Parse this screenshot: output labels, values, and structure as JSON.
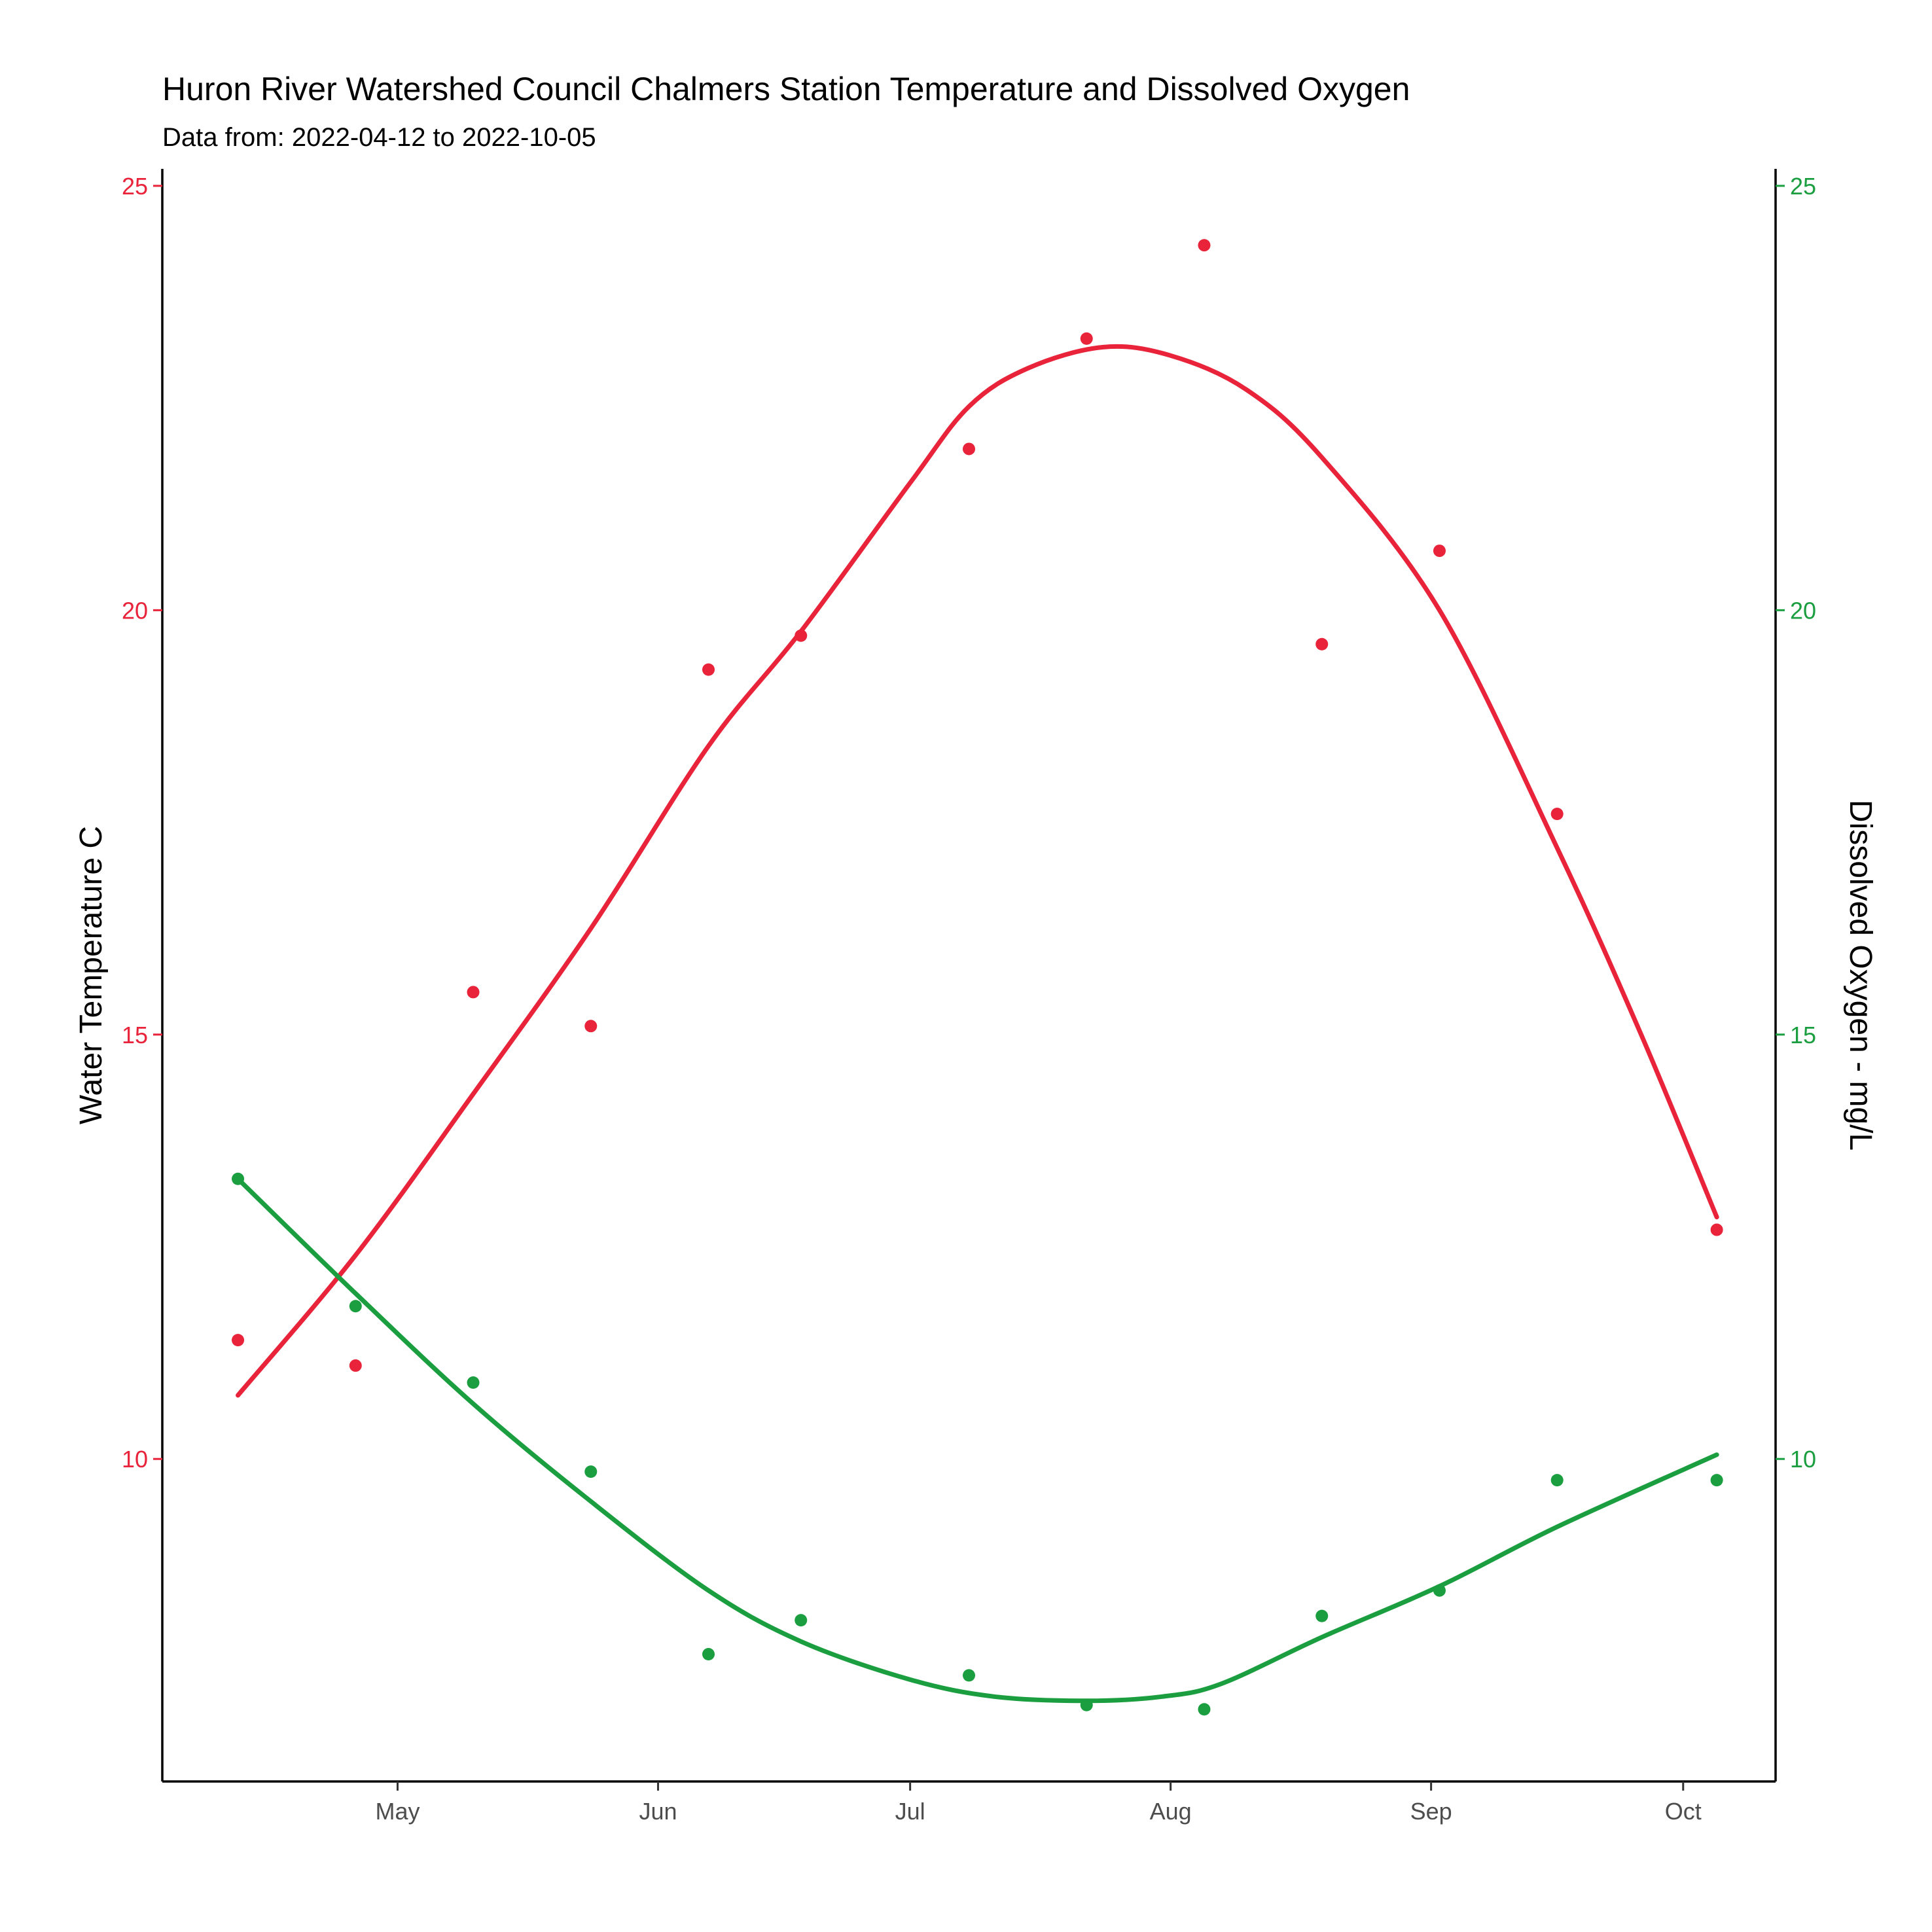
{
  "chart_data": {
    "type": "scatter",
    "title": "Huron River Watershed Council Chalmers Station Temperature and Dissolved Oxygen",
    "subtitle": "Data from: 2022-04-12 to 2022-10-05",
    "xlabel": "",
    "ylabel_left": "Water Temperature C",
    "ylabel_right": "Dissolved Oxygen - mg/L",
    "xlim": [
      "2022-04-03",
      "2022-10-12"
    ],
    "ylim": [
      6.2,
      25.2
    ],
    "x_ticks": [
      {
        "date": "2022-05-01",
        "label": "May"
      },
      {
        "date": "2022-06-01",
        "label": "Jun"
      },
      {
        "date": "2022-07-01",
        "label": "Jul"
      },
      {
        "date": "2022-08-01",
        "label": "Aug"
      },
      {
        "date": "2022-09-01",
        "label": "Sep"
      },
      {
        "date": "2022-10-01",
        "label": "Oct"
      }
    ],
    "y_ticks": [
      "10",
      "15",
      "20",
      "25"
    ],
    "grid": false,
    "legend": "none",
    "series": [
      {
        "axis": "left",
        "color": "#e8233a",
        "points": [
          {
            "x": "2022-04-12",
            "y": 11.4
          },
          {
            "x": "2022-04-26",
            "y": 11.1
          },
          {
            "x": "2022-05-10",
            "y": 15.5
          },
          {
            "x": "2022-05-24",
            "y": 15.1
          },
          {
            "x": "2022-06-07",
            "y": 19.3
          },
          {
            "x": "2022-06-18",
            "y": 19.7
          },
          {
            "x": "2022-07-08",
            "y": 21.9
          },
          {
            "x": "2022-07-22",
            "y": 23.2
          },
          {
            "x": "2022-08-05",
            "y": 24.3
          },
          {
            "x": "2022-08-19",
            "y": 19.6
          },
          {
            "x": "2022-09-02",
            "y": 20.7
          },
          {
            "x": "2022-09-16",
            "y": 17.6
          },
          {
            "x": "2022-10-05",
            "y": 12.7
          }
        ],
        "smooth": [
          {
            "x": "2022-04-12",
            "y": 10.75
          },
          {
            "x": "2022-04-26",
            "y": 12.4
          },
          {
            "x": "2022-05-10",
            "y": 14.3
          },
          {
            "x": "2022-05-24",
            "y": 16.25
          },
          {
            "x": "2022-06-07",
            "y": 18.4
          },
          {
            "x": "2022-06-18",
            "y": 19.75
          },
          {
            "x": "2022-07-01",
            "y": 21.5
          },
          {
            "x": "2022-07-08",
            "y": 22.4
          },
          {
            "x": "2022-07-15",
            "y": 22.85
          },
          {
            "x": "2022-07-24",
            "y": 23.1
          },
          {
            "x": "2022-08-01",
            "y": 23.0
          },
          {
            "x": "2022-08-10",
            "y": 22.6
          },
          {
            "x": "2022-08-19",
            "y": 21.8
          },
          {
            "x": "2022-09-02",
            "y": 20.0
          },
          {
            "x": "2022-09-16",
            "y": 17.2
          },
          {
            "x": "2022-09-26",
            "y": 15.0
          },
          {
            "x": "2022-10-05",
            "y": 12.85
          }
        ]
      },
      {
        "axis": "right",
        "color": "#1a9e3f",
        "points": [
          {
            "x": "2022-04-12",
            "y": 13.3
          },
          {
            "x": "2022-04-26",
            "y": 11.8
          },
          {
            "x": "2022-05-10",
            "y": 10.9
          },
          {
            "x": "2022-05-24",
            "y": 9.85
          },
          {
            "x": "2022-06-07",
            "y": 7.7
          },
          {
            "x": "2022-06-18",
            "y": 8.1
          },
          {
            "x": "2022-07-08",
            "y": 7.45
          },
          {
            "x": "2022-07-22",
            "y": 7.1
          },
          {
            "x": "2022-08-05",
            "y": 7.05
          },
          {
            "x": "2022-08-19",
            "y": 8.15
          },
          {
            "x": "2022-09-02",
            "y": 8.45
          },
          {
            "x": "2022-09-16",
            "y": 9.75
          },
          {
            "x": "2022-10-05",
            "y": 9.75
          }
        ],
        "smooth": [
          {
            "x": "2022-04-12",
            "y": 13.3
          },
          {
            "x": "2022-04-26",
            "y": 11.95
          },
          {
            "x": "2022-05-10",
            "y": 10.65
          },
          {
            "x": "2022-05-24",
            "y": 9.5
          },
          {
            "x": "2022-06-07",
            "y": 8.45
          },
          {
            "x": "2022-06-18",
            "y": 7.85
          },
          {
            "x": "2022-07-01",
            "y": 7.4
          },
          {
            "x": "2022-07-11",
            "y": 7.2
          },
          {
            "x": "2022-07-22",
            "y": 7.15
          },
          {
            "x": "2022-07-31",
            "y": 7.2
          },
          {
            "x": "2022-08-07",
            "y": 7.35
          },
          {
            "x": "2022-08-19",
            "y": 7.9
          },
          {
            "x": "2022-09-02",
            "y": 8.5
          },
          {
            "x": "2022-09-16",
            "y": 9.2
          },
          {
            "x": "2022-10-05",
            "y": 10.05
          }
        ]
      }
    ]
  }
}
